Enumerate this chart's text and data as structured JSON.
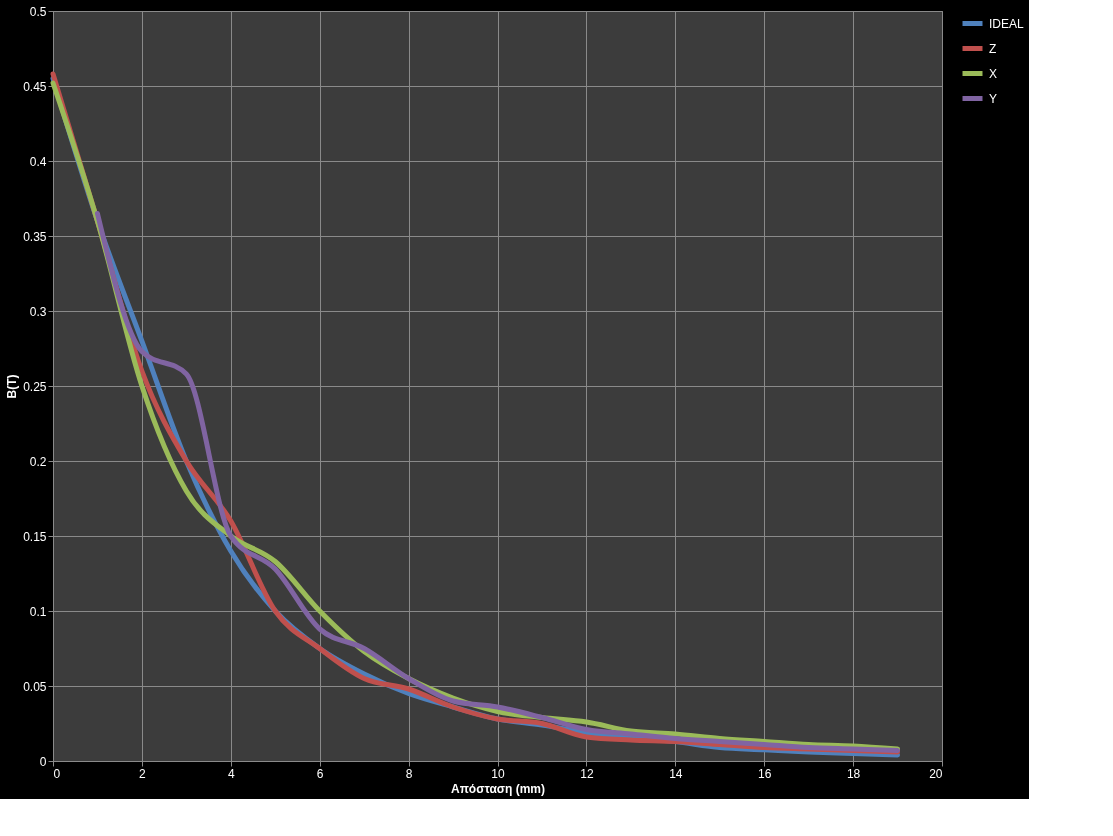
{
  "chart_data": {
    "type": "line",
    "xlabel": "Απόσταση (mm)",
    "ylabel": "B(T)",
    "x": [
      0,
      1,
      2,
      3,
      4,
      5,
      6,
      7,
      8,
      9,
      10,
      11,
      12,
      13,
      14,
      15,
      16,
      17,
      18,
      19
    ],
    "series": [
      {
        "name": "IDEAL",
        "color": "#4f81bd",
        "values": [
          0.455,
          0.36,
          0.28,
          0.2,
          0.14,
          0.1,
          0.075,
          0.058,
          0.045,
          0.036,
          0.028,
          0.024,
          0.019,
          0.016,
          0.013,
          0.009,
          0.0075,
          0.006,
          0.005,
          0.004
        ]
      },
      {
        "name": "Z",
        "color": "#c0504d",
        "values": [
          0.458,
          0.36,
          0.26,
          0.2,
          0.16,
          0.1,
          0.075,
          0.055,
          0.048,
          0.036,
          0.028,
          0.025,
          0.016,
          0.014,
          0.013,
          0.011,
          0.009,
          0.008,
          0.007,
          0.006
        ]
      },
      {
        "name": "X",
        "color": "#9bbb59",
        "values": [
          0.452,
          0.36,
          0.25,
          0.18,
          0.15,
          0.133,
          0.1,
          0.073,
          0.055,
          0.042,
          0.033,
          0.029,
          0.026,
          0.02,
          0.018,
          0.015,
          0.013,
          0.011,
          0.01,
          0.008
        ]
      },
      {
        "name": "Y",
        "color": "#8064a2",
        "values": [
          null,
          0.365,
          0.273,
          0.258,
          0.15,
          0.128,
          0.088,
          0.075,
          0.055,
          0.04,
          0.036,
          0.029,
          0.021,
          0.018,
          0.015,
          0.013,
          0.011,
          0.009,
          0.008,
          0.007
        ]
      }
    ],
    "xlim": [
      0,
      20
    ],
    "xticks": [
      0,
      2,
      4,
      6,
      8,
      10,
      12,
      14,
      16,
      18,
      20
    ],
    "ylim": [
      0,
      0.5
    ],
    "yticks": [
      0,
      0.05,
      0.1,
      0.15,
      0.2,
      0.25,
      0.3,
      0.35,
      0.4,
      0.45,
      0.5
    ],
    "grid": true,
    "legend": "right",
    "marker": "none",
    "line_style": "solid"
  }
}
